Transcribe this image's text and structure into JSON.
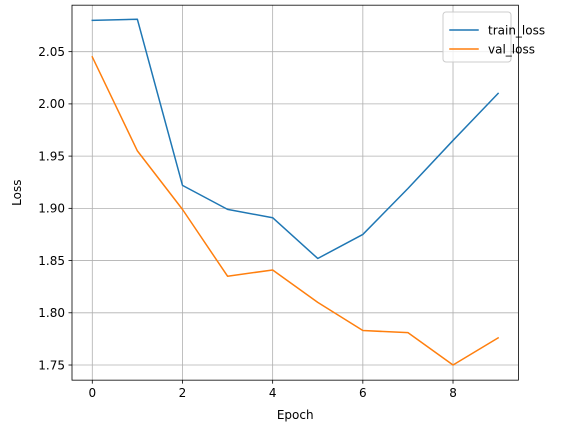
{
  "chart_data": {
    "type": "line",
    "title": "",
    "xlabel": "Epoch",
    "ylabel": "Loss",
    "x": [
      0,
      1,
      2,
      3,
      4,
      5,
      6,
      7,
      8,
      9
    ],
    "xlim": [
      -0.45,
      9.45
    ],
    "ylim": [
      1.7355,
      2.0945
    ],
    "xticks": [
      0,
      2,
      4,
      6,
      8
    ],
    "yticks": [
      1.75,
      1.8,
      1.85,
      1.9,
      1.95,
      2.0,
      2.05
    ],
    "xtick_labels": [
      "0",
      "2",
      "4",
      "6",
      "8"
    ],
    "ytick_labels": [
      "1.75",
      "1.80",
      "1.85",
      "1.90",
      "1.95",
      "2.00",
      "2.05"
    ],
    "grid": true,
    "legend_position": "top-right",
    "series": [
      {
        "name": "train_loss",
        "color": "#1f77b4",
        "values": [
          2.08,
          2.081,
          1.922,
          1.899,
          1.891,
          1.852,
          1.875,
          1.919,
          1.965,
          2.01
        ]
      },
      {
        "name": "val_loss",
        "color": "#ff7f0e",
        "values": [
          2.045,
          1.955,
          1.899,
          1.835,
          1.841,
          1.81,
          1.783,
          1.781,
          1.75,
          1.776
        ]
      }
    ]
  }
}
